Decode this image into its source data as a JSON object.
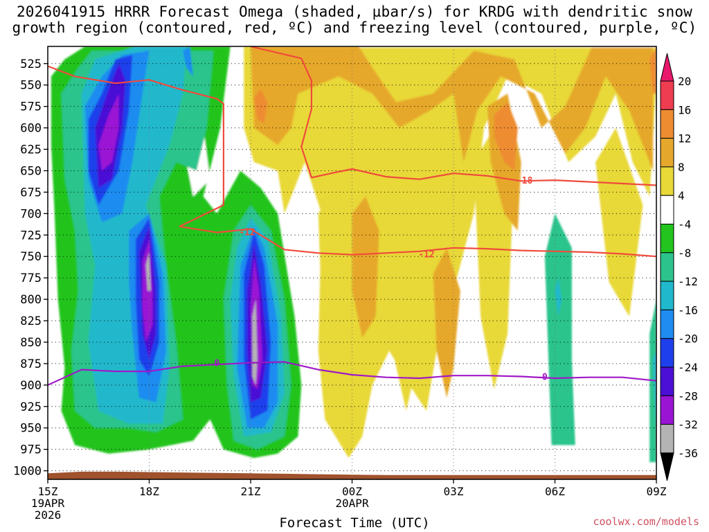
{
  "title_line1": "2026041915 HRRR Forecast Omega (shaded, µbar/s) for KRDG with dendritic snow",
  "title_line2": "growth region (contoured, red, ºC) and freezing level (contoured, purple, ºC)",
  "credit": "coolwx.com/models",
  "chart_data": {
    "type": "heatmap",
    "xlabel": "Forecast Time (UTC)",
    "ylabel": "",
    "x_ticks": [
      {
        "h": 0,
        "lines": [
          "15Z",
          "19APR",
          "2026"
        ]
      },
      {
        "h": 3,
        "lines": [
          "18Z"
        ]
      },
      {
        "h": 6,
        "lines": [
          "21Z"
        ]
      },
      {
        "h": 9,
        "lines": [
          "00Z",
          "20APR"
        ]
      },
      {
        "h": 12,
        "lines": [
          "03Z"
        ]
      },
      {
        "h": 15,
        "lines": [
          "06Z"
        ]
      },
      {
        "h": 18,
        "lines": [
          "09Z"
        ]
      }
    ],
    "xlim": [
      0,
      18
    ],
    "y_ticks": [
      525,
      550,
      575,
      600,
      625,
      650,
      675,
      700,
      725,
      750,
      775,
      800,
      825,
      850,
      875,
      900,
      925,
      950,
      975,
      1000
    ],
    "ylim": [
      505,
      1010
    ],
    "grid": true,
    "colorbar": {
      "labels": [
        "20",
        "16",
        "12",
        "8",
        "4",
        "-4",
        "-8",
        "-12",
        "-16",
        "-20",
        "-24",
        "-28",
        "-32",
        "-36"
      ],
      "bins": [
        {
          "lo": 16,
          "hi": 20,
          "color": "#ee3c50"
        },
        {
          "lo": 12,
          "hi": 16,
          "color": "#ee8c32"
        },
        {
          "lo": 8,
          "hi": 12,
          "color": "#e6a82c"
        },
        {
          "lo": 4,
          "hi": 8,
          "color": "#e8d838"
        },
        {
          "lo": -4,
          "hi": 4,
          "color": "#ffffff"
        },
        {
          "lo": -8,
          "hi": -4,
          "color": "#22c41e"
        },
        {
          "lo": -12,
          "hi": -8,
          "color": "#2cc48c"
        },
        {
          "lo": -16,
          "hi": -12,
          "color": "#20b8cc"
        },
        {
          "lo": -20,
          "hi": -16,
          "color": "#1e8cf0"
        },
        {
          "lo": -24,
          "hi": -20,
          "color": "#1e40ec"
        },
        {
          "lo": -28,
          "hi": -24,
          "color": "#4a10d6"
        },
        {
          "lo": -32,
          "hi": -28,
          "color": "#9a14d4"
        },
        {
          "lo": -36,
          "hi": -32,
          "color": "#b4b4b4"
        }
      ],
      "top_arrow_color": "#e8186c",
      "bottom_arrow_color": "#000000"
    },
    "features": [
      {
        "name": "ascent-core-a",
        "t": 2.0,
        "p": 620,
        "value": -31
      },
      {
        "name": "ascent-core-b",
        "t": 3.0,
        "p": 770,
        "value": -33
      },
      {
        "name": "ascent-core-c",
        "t": 6.0,
        "p": 850,
        "value": -35
      },
      {
        "name": "descent-a",
        "t": 6.2,
        "p": 575,
        "value": 13
      },
      {
        "name": "descent-b",
        "t": 13.0,
        "p": 620,
        "value": 13
      },
      {
        "name": "descent-c",
        "t": 18.0,
        "p": 540,
        "value": 14
      }
    ],
    "contours": [
      {
        "name": "dgz-neg12",
        "color": "#f04a3c",
        "label": "-12",
        "points": [
          [
            0,
            528
          ],
          [
            0.8,
            540
          ],
          [
            2,
            548
          ],
          [
            3,
            544
          ],
          [
            4,
            556
          ],
          [
            5,
            566
          ],
          [
            5.2,
            572
          ],
          [
            5.2,
            690
          ],
          [
            3.9,
            715
          ],
          [
            5,
            722
          ],
          [
            6,
            718
          ],
          [
            7,
            742
          ],
          [
            8,
            746
          ],
          [
            9,
            748
          ],
          [
            10,
            746
          ],
          [
            11,
            744
          ],
          [
            12,
            740
          ],
          [
            13,
            741
          ],
          [
            14,
            743
          ],
          [
            15,
            744
          ],
          [
            16,
            745
          ],
          [
            17,
            747
          ],
          [
            18,
            750
          ]
        ],
        "label_at": [
          [
            5.9,
            721
          ],
          [
            11.2,
            747
          ]
        ]
      },
      {
        "name": "dgz-neg18",
        "color": "#f04a3c",
        "label": "-18",
        "points": [
          [
            6,
            505
          ],
          [
            7.5,
            519
          ],
          [
            7.8,
            545
          ],
          [
            7.8,
            578
          ],
          [
            7.5,
            622
          ],
          [
            7.8,
            658
          ],
          [
            8.5,
            652
          ],
          [
            9,
            648
          ],
          [
            10,
            657
          ],
          [
            11,
            660
          ],
          [
            12,
            653
          ],
          [
            13,
            656
          ],
          [
            14,
            662
          ],
          [
            15,
            661
          ],
          [
            16,
            663
          ],
          [
            17,
            665
          ],
          [
            18,
            667
          ]
        ],
        "label_at": [
          [
            14.1,
            661
          ]
        ]
      },
      {
        "name": "freezing-level-0",
        "color": "#a018c8",
        "label": "0",
        "points": [
          [
            0,
            900
          ],
          [
            1,
            882
          ],
          [
            2,
            884
          ],
          [
            3,
            884
          ],
          [
            4,
            878
          ],
          [
            5,
            876
          ],
          [
            6,
            874
          ],
          [
            7,
            873
          ],
          [
            8,
            882
          ],
          [
            9,
            888
          ],
          [
            10,
            891
          ],
          [
            11,
            892
          ],
          [
            12,
            889
          ],
          [
            13,
            889
          ],
          [
            14,
            890
          ],
          [
            15,
            892
          ],
          [
            16,
            891
          ],
          [
            17,
            891
          ],
          [
            18,
            895
          ]
        ],
        "label_at": [
          [
            5,
            874
          ],
          [
            14.7,
            890
          ]
        ]
      }
    ],
    "terrain": {
      "color": "#a0522d"
    }
  }
}
